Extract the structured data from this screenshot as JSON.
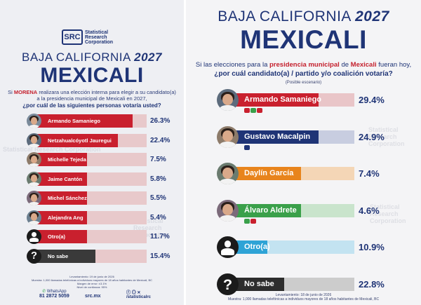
{
  "left": {
    "logo": {
      "mark": "SRC",
      "name": "Statistical Research Corporation"
    },
    "state": "BAJA CALIFORNIA",
    "year": "2027",
    "city": "MEXICALI",
    "question_pre": "Si",
    "question_party": "MORENA",
    "question_post": "realizara una elección interna para elegir a su candidato(a) a la presidencia municipal de Mexicali en 2027,",
    "question_main": "¿por cuál de las siguientes personas votaría usted?",
    "footer": [
      "Levantamiento: 19 de junio de 2026",
      "Muestra: 1,000 llamadas telefónicas a individuos mayores de 18 años habitantes de Mexicali, BC",
      "Margen de error: ±3.1%",
      "Nivel de confianza: 95%"
    ],
    "contact_label": "WhatsApp",
    "phone": "81 2872 5059",
    "site": "src.mx",
    "social": "/statisticalrc",
    "colors": {
      "candidate_bar": "#c9202e",
      "otro_bar": "#c9202e",
      "nosabe_bar": "#3a3a3a",
      "track": "#e8c9cb",
      "navy": "#1f3476"
    },
    "watermark": "Statistical Research Corporation"
  },
  "right": {
    "state": "BAJA CALIFORNIA",
    "year": "2027",
    "city": "MEXICALI",
    "question_pre": "Si las elecciones para la",
    "question_bold": "presidencia municipal",
    "question_mid": "de",
    "question_city": "Mexicali",
    "question_post": "fueran hoy,",
    "question_main": "¿por cuál candidato(a) / partido y/o coalición votaría?",
    "note": "(Posible escenario)",
    "footer": [
      "Levantamiento: 18 de junio de 2026",
      "Muestra: 1,000 llamadas telefónicas a individuos mayores de 18 años habitantes de Mexicali, BC"
    ],
    "watermark": "Statistical Research Corporation"
  },
  "chart_data": [
    {
      "type": "bar",
      "title": "BAJA CALIFORNIA 2027 MEXICALI",
      "subtitle": "¿por cuál de las siguientes personas votaría usted?",
      "categories": [
        "Armando Samaniego",
        "Netzahualcóyotl Jauregui",
        "Michelle Tejeda",
        "Jaime Cantón",
        "Michel Sánchez",
        "Alejandra Ang",
        "Otro(a)",
        "No sabe"
      ],
      "values": [
        26.3,
        22.4,
        7.5,
        5.8,
        5.5,
        5.4,
        11.7,
        15.4
      ],
      "labels": [
        "26.3%",
        "22.4%",
        "7.5%",
        "5.8%",
        "5.5%",
        "5.4%",
        "11.7%",
        "15.4%"
      ],
      "ylim": [
        0,
        30
      ]
    },
    {
      "type": "bar",
      "title": "BAJA CALIFORNIA 2027 MEXICALI",
      "subtitle": "¿por cuál candidato(a) / partido y/o coalición votaría?",
      "categories": [
        "Armando Samaniego",
        "Gustavo Macalpin",
        "Daylín García",
        "Álvaro Aldrete",
        "Otro(a)",
        "No sabe"
      ],
      "values": [
        29.4,
        24.9,
        7.4,
        4.6,
        10.9,
        22.8
      ],
      "labels": [
        "29.4%",
        "24.9%",
        "7.4%",
        "4.6%",
        "10.9%",
        "22.8%"
      ],
      "bar_colors": [
        "#c9202e",
        "#1f3476",
        "#e8841c",
        "#3aa04a",
        "#2ea3d6",
        "#2d2d2d"
      ],
      "track_colors": [
        "#e9c5c8",
        "#c8cde0",
        "#f4d6b6",
        "#c9e4cc",
        "#c3e3f1",
        "#cccccc"
      ],
      "ylim": [
        0,
        30
      ]
    }
  ]
}
